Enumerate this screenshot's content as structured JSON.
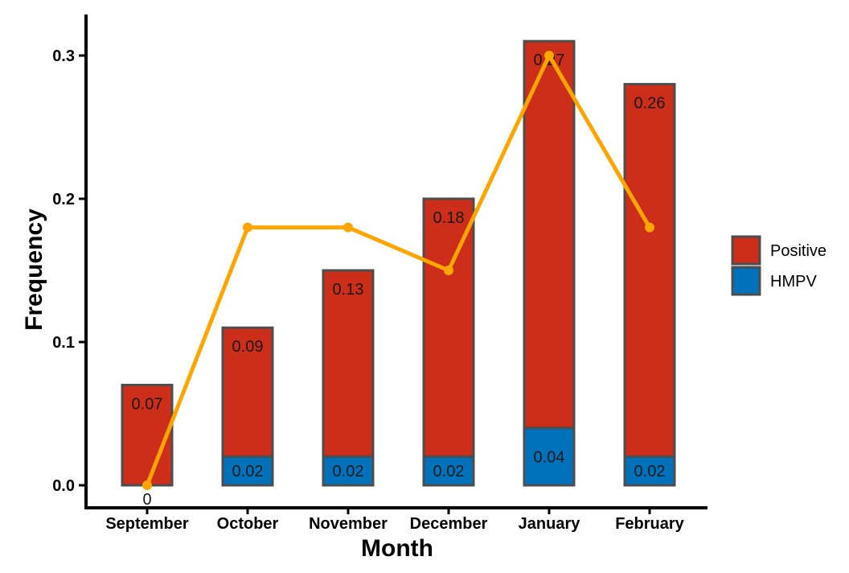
{
  "chart_data": {
    "type": "bar",
    "stacked": true,
    "title": "",
    "xlabel": "Month",
    "ylabel": "Frequency",
    "ylim": [
      0,
      0.32
    ],
    "yticks": [
      "0.0",
      "0.1",
      "0.2",
      "0.3"
    ],
    "ytick_values": [
      0,
      0.1,
      0.2,
      0.3
    ],
    "grid": false,
    "legend_position": "right",
    "categories": [
      "September",
      "October",
      "November",
      "December",
      "January",
      "February"
    ],
    "series": [
      {
        "name": "HMPV",
        "color": "#0072bb",
        "values": [
          0,
          0.02,
          0.02,
          0.02,
          0.04,
          0.02
        ],
        "labels": [
          "0",
          "0.02",
          "0.02",
          "0.02",
          "0.04",
          "0.02"
        ]
      },
      {
        "name": "Positive",
        "color": "#cc2e19",
        "values": [
          0.07,
          0.09,
          0.13,
          0.18,
          0.27,
          0.26
        ],
        "labels": [
          "0.07",
          "0.09",
          "0.13",
          "0.18",
          "0.27",
          "0.26"
        ]
      }
    ],
    "line": {
      "color": "#ffa500",
      "values": [
        0,
        0.18,
        0.18,
        0.15,
        0.3,
        0.18
      ]
    },
    "legend": [
      "Positive",
      "HMPV"
    ]
  }
}
